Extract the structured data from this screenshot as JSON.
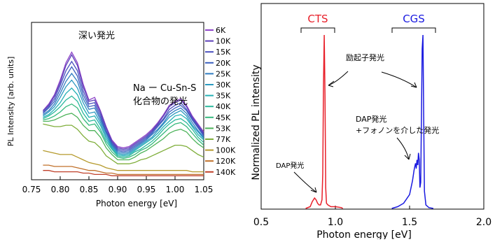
{
  "chart_data": [
    {
      "type": "line",
      "xlabel": "Photon energy [eV]",
      "ylabel": "PL Intensity [arb. units]",
      "xlim": [
        0.75,
        1.05
      ],
      "xticks": [
        "0.75",
        "0.80",
        "0.85",
        "0.90",
        "0.95",
        "1.00",
        "1.05"
      ],
      "grid": false,
      "legend_position": "right",
      "annotations": [
        "深い発光",
        "Na ー Cu-Sn-S",
        "化合物の発光"
      ],
      "x": [
        0.77,
        0.78,
        0.79,
        0.8,
        0.81,
        0.82,
        0.83,
        0.84,
        0.85,
        0.86,
        0.87,
        0.88,
        0.89,
        0.9,
        0.91,
        0.92,
        0.93,
        0.94,
        0.95,
        0.96,
        0.97,
        0.98,
        0.99,
        1.0,
        1.01,
        1.02,
        1.03,
        1.04,
        1.05
      ],
      "series": [
        {
          "name": "6K",
          "color": "#8e44c8",
          "values": [
            0.52,
            0.57,
            0.64,
            0.75,
            0.88,
            0.96,
            0.88,
            0.72,
            0.6,
            0.62,
            0.52,
            0.4,
            0.3,
            0.25,
            0.24,
            0.25,
            0.28,
            0.31,
            0.34,
            0.38,
            0.43,
            0.49,
            0.56,
            0.59,
            0.61,
            0.56,
            0.48,
            0.42,
            0.36
          ]
        },
        {
          "name": "10K",
          "color": "#5b3fb8",
          "values": [
            0.52,
            0.56,
            0.63,
            0.73,
            0.86,
            0.94,
            0.86,
            0.7,
            0.59,
            0.6,
            0.51,
            0.39,
            0.29,
            0.24,
            0.23,
            0.24,
            0.27,
            0.3,
            0.33,
            0.37,
            0.42,
            0.48,
            0.55,
            0.58,
            0.6,
            0.55,
            0.47,
            0.41,
            0.35
          ]
        },
        {
          "name": "15K",
          "color": "#4a4fbf",
          "values": [
            0.51,
            0.55,
            0.61,
            0.71,
            0.82,
            0.89,
            0.82,
            0.67,
            0.57,
            0.58,
            0.49,
            0.37,
            0.28,
            0.23,
            0.22,
            0.23,
            0.26,
            0.29,
            0.32,
            0.36,
            0.41,
            0.46,
            0.53,
            0.56,
            0.58,
            0.53,
            0.46,
            0.4,
            0.34
          ]
        },
        {
          "name": "20K",
          "color": "#3a5fbf",
          "values": [
            0.5,
            0.54,
            0.59,
            0.68,
            0.78,
            0.85,
            0.78,
            0.64,
            0.55,
            0.56,
            0.47,
            0.36,
            0.27,
            0.22,
            0.21,
            0.22,
            0.25,
            0.28,
            0.31,
            0.35,
            0.4,
            0.45,
            0.51,
            0.54,
            0.56,
            0.52,
            0.45,
            0.39,
            0.33
          ]
        },
        {
          "name": "25K",
          "color": "#2f7cc0",
          "values": [
            0.49,
            0.52,
            0.57,
            0.65,
            0.74,
            0.8,
            0.74,
            0.61,
            0.53,
            0.54,
            0.45,
            0.35,
            0.26,
            0.21,
            0.2,
            0.21,
            0.24,
            0.27,
            0.3,
            0.34,
            0.38,
            0.43,
            0.49,
            0.52,
            0.54,
            0.5,
            0.43,
            0.37,
            0.32
          ]
        },
        {
          "name": "30K",
          "color": "#2a99c0",
          "values": [
            0.48,
            0.51,
            0.55,
            0.62,
            0.7,
            0.75,
            0.69,
            0.58,
            0.5,
            0.51,
            0.43,
            0.33,
            0.25,
            0.2,
            0.19,
            0.2,
            0.23,
            0.26,
            0.29,
            0.32,
            0.37,
            0.42,
            0.47,
            0.5,
            0.52,
            0.48,
            0.41,
            0.36,
            0.31
          ]
        },
        {
          "name": "35K",
          "color": "#24b0b5",
          "values": [
            0.47,
            0.49,
            0.53,
            0.58,
            0.65,
            0.69,
            0.64,
            0.54,
            0.47,
            0.48,
            0.41,
            0.31,
            0.24,
            0.19,
            0.18,
            0.19,
            0.22,
            0.25,
            0.28,
            0.31,
            0.35,
            0.4,
            0.44,
            0.48,
            0.49,
            0.46,
            0.4,
            0.34,
            0.3
          ]
        },
        {
          "name": "40K",
          "color": "#2ab89c",
          "values": [
            0.46,
            0.48,
            0.51,
            0.55,
            0.6,
            0.63,
            0.59,
            0.5,
            0.44,
            0.45,
            0.38,
            0.29,
            0.23,
            0.18,
            0.17,
            0.18,
            0.21,
            0.23,
            0.26,
            0.29,
            0.33,
            0.38,
            0.42,
            0.45,
            0.46,
            0.43,
            0.38,
            0.32,
            0.28
          ]
        },
        {
          "name": "45K",
          "color": "#35b97d",
          "values": [
            0.45,
            0.46,
            0.48,
            0.51,
            0.55,
            0.57,
            0.54,
            0.46,
            0.41,
            0.42,
            0.36,
            0.27,
            0.21,
            0.17,
            0.16,
            0.17,
            0.19,
            0.22,
            0.24,
            0.27,
            0.31,
            0.35,
            0.39,
            0.42,
            0.43,
            0.4,
            0.35,
            0.3,
            0.26
          ]
        },
        {
          "name": "53K",
          "color": "#4db35a",
          "values": [
            0.44,
            0.44,
            0.45,
            0.47,
            0.49,
            0.5,
            0.47,
            0.41,
            0.37,
            0.37,
            0.32,
            0.24,
            0.19,
            0.15,
            0.15,
            0.15,
            0.17,
            0.2,
            0.22,
            0.25,
            0.28,
            0.31,
            0.35,
            0.37,
            0.38,
            0.36,
            0.31,
            0.27,
            0.24
          ]
        },
        {
          "name": "77K",
          "color": "#7fae3a",
          "values": [
            0.42,
            0.41,
            0.4,
            0.4,
            0.41,
            0.41,
            0.38,
            0.33,
            0.29,
            0.28,
            0.24,
            0.18,
            0.15,
            0.12,
            0.12,
            0.12,
            0.13,
            0.15,
            0.16,
            0.18,
            0.2,
            0.22,
            0.24,
            0.26,
            0.26,
            0.25,
            0.22,
            0.19,
            0.17
          ]
        },
        {
          "name": "100K",
          "color": "#b59a2c",
          "values": [
            0.22,
            0.21,
            0.2,
            0.19,
            0.19,
            0.19,
            0.17,
            0.15,
            0.13,
            0.12,
            0.11,
            0.09,
            0.08,
            0.07,
            0.07,
            0.07,
            0.07,
            0.07,
            0.07,
            0.07,
            0.07,
            0.07,
            0.07,
            0.07,
            0.07,
            0.07,
            0.06,
            0.06,
            0.06
          ]
        },
        {
          "name": "120K",
          "color": "#c0702a",
          "values": [
            0.11,
            0.11,
            0.1,
            0.1,
            0.1,
            0.1,
            0.09,
            0.08,
            0.07,
            0.07,
            0.06,
            0.05,
            0.05,
            0.04,
            0.04,
            0.04,
            0.04,
            0.04,
            0.04,
            0.04,
            0.04,
            0.04,
            0.04,
            0.04,
            0.04,
            0.04,
            0.04,
            0.04,
            0.04
          ]
        },
        {
          "name": "140K",
          "color": "#c0402a",
          "values": [
            0.07,
            0.07,
            0.06,
            0.06,
            0.06,
            0.06,
            0.06,
            0.05,
            0.05,
            0.04,
            0.04,
            0.04,
            0.03,
            0.03,
            0.03,
            0.03,
            0.03,
            0.03,
            0.03,
            0.03,
            0.03,
            0.03,
            0.03,
            0.03,
            0.03,
            0.03,
            0.03,
            0.03,
            0.03
          ]
        }
      ]
    },
    {
      "type": "line",
      "xlabel": "Photon energy [eV]",
      "ylabel": "Normalized PL intensity",
      "xlim": [
        0.5,
        2.0
      ],
      "xticks": [
        "0.5",
        "1.0",
        "1.5",
        "2.0"
      ],
      "grid": false,
      "annotations": [
        "CTS",
        "CGS",
        "励起子発光",
        "DAP発光",
        "DAP発光",
        "+フォノンを介した発光"
      ],
      "series": [
        {
          "name": "CTS",
          "color": "#e8202a",
          "x": [
            0.8,
            0.83,
            0.845,
            0.86,
            0.87,
            0.88,
            0.89,
            0.9,
            0.91,
            0.915,
            0.92,
            0.925,
            0.93,
            0.935,
            0.94,
            0.95,
            0.97,
            1.0,
            1.04,
            1.05
          ],
          "values": [
            0.0,
            0.01,
            0.04,
            0.06,
            0.05,
            0.03,
            0.02,
            0.02,
            0.05,
            0.2,
            0.7,
            1.0,
            0.65,
            0.12,
            0.03,
            0.02,
            0.01,
            0.01,
            0.005,
            0.0
          ]
        },
        {
          "name": "CGS",
          "color": "#1a1ae0",
          "x": [
            1.38,
            1.42,
            1.46,
            1.5,
            1.52,
            1.53,
            1.535,
            1.54,
            1.545,
            1.55,
            1.555,
            1.56,
            1.565,
            1.57,
            1.575,
            1.58,
            1.585,
            1.59,
            1.595,
            1.6,
            1.61,
            1.63,
            1.66
          ],
          "values": [
            0.0,
            0.01,
            0.03,
            0.08,
            0.16,
            0.22,
            0.24,
            0.26,
            0.23,
            0.28,
            0.25,
            0.32,
            0.28,
            0.12,
            0.15,
            0.55,
            0.92,
            1.0,
            0.55,
            0.1,
            0.02,
            0.005,
            0.0
          ]
        }
      ]
    }
  ]
}
